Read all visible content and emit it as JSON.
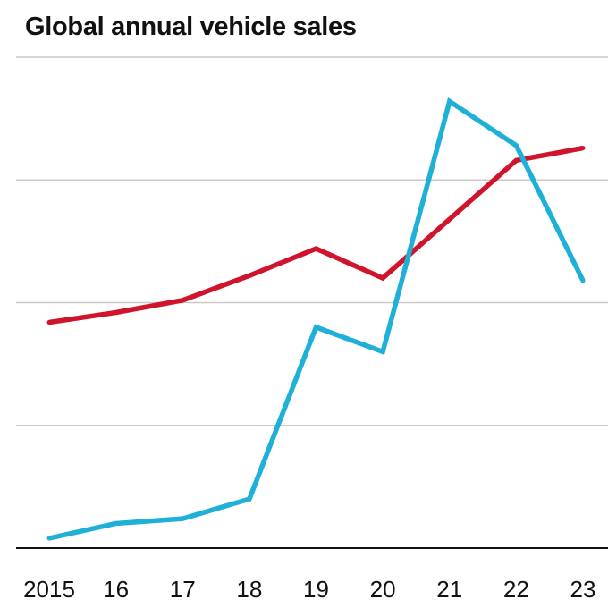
{
  "chart_data": {
    "type": "line",
    "title": "Global annual vehicle sales",
    "xlabel": "",
    "ylabel": "",
    "categories": [
      "2015",
      "16",
      "17",
      "18",
      "19",
      "20",
      "21",
      "22",
      "23"
    ],
    "ylim": [
      0,
      100
    ],
    "grid": true,
    "legend": "none",
    "series": [
      {
        "color": "#d0142c",
        "values": [
          46,
          48,
          50.5,
          55.5,
          61,
          55,
          67,
          79,
          81.5
        ]
      },
      {
        "color": "#1fb0d8",
        "values": [
          2,
          5,
          6,
          10,
          45,
          40,
          91,
          82,
          54.5
        ]
      }
    ]
  }
}
